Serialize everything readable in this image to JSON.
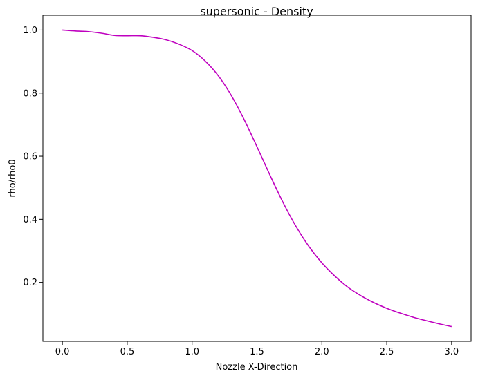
{
  "chart_data": {
    "type": "line",
    "title": "supersonic - Density",
    "xlabel": "Nozzle X-Direction",
    "ylabel": "rho/rho0",
    "xlim": [
      -0.15,
      3.15
    ],
    "ylim": [
      0.013,
      1.047
    ],
    "xticks": [
      0.0,
      0.5,
      1.0,
      1.5,
      2.0,
      2.5,
      3.0
    ],
    "xtick_labels": [
      "0.0",
      "0.5",
      "1.0",
      "1.5",
      "2.0",
      "2.5",
      "3.0"
    ],
    "yticks": [
      0.2,
      0.4,
      0.6,
      0.8,
      1.0
    ],
    "ytick_labels": [
      "0.2",
      "0.4",
      "0.6",
      "0.8",
      "1.0"
    ],
    "grid": false,
    "color": "#bf00bf",
    "series": [
      {
        "x": [
          0.0,
          0.1,
          0.2,
          0.3,
          0.4,
          0.5,
          0.6,
          0.7,
          0.8,
          0.9,
          1.0,
          1.1,
          1.2,
          1.3,
          1.4,
          1.5,
          1.6,
          1.7,
          1.8,
          1.9,
          2.0,
          2.1,
          2.2,
          2.3,
          2.4,
          2.5,
          2.6,
          2.7,
          2.8,
          2.9,
          3.0
        ],
        "y": [
          1.0,
          0.997,
          0.995,
          0.99,
          0.983,
          0.982,
          0.982,
          0.977,
          0.969,
          0.955,
          0.935,
          0.902,
          0.856,
          0.794,
          0.717,
          0.63,
          0.54,
          0.454,
          0.378,
          0.314,
          0.262,
          0.22,
          0.185,
          0.158,
          0.136,
          0.118,
          0.103,
          0.09,
          0.079,
          0.069,
          0.06
        ]
      }
    ]
  }
}
